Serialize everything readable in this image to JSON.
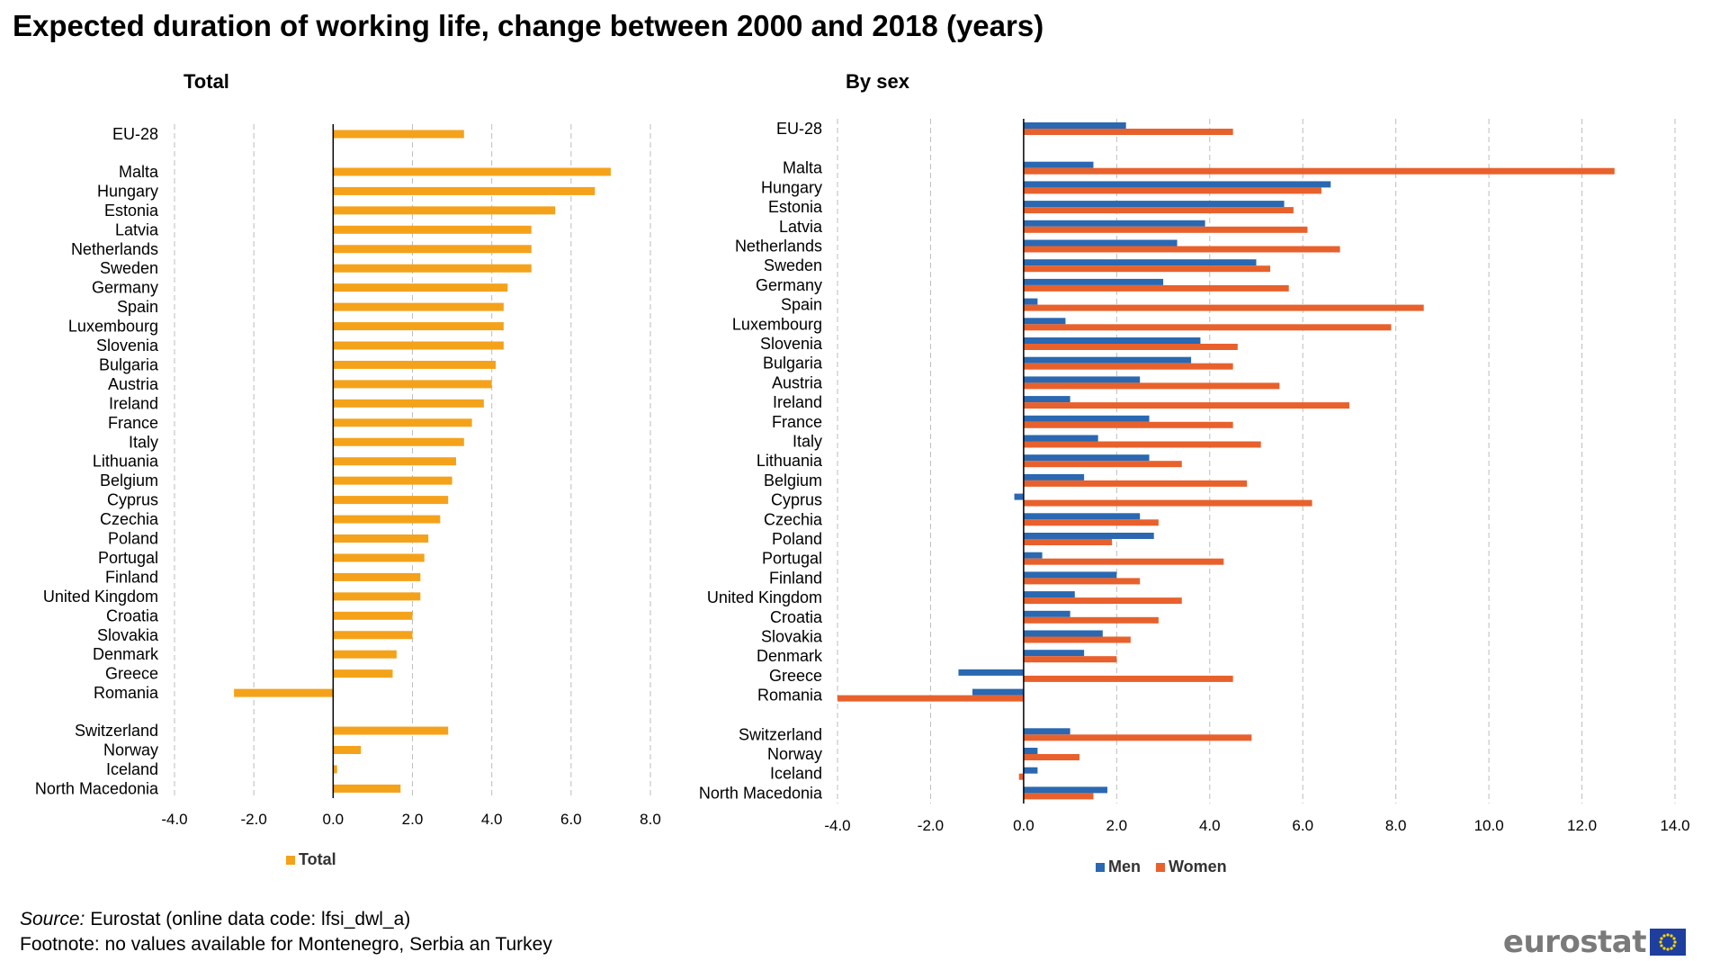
{
  "title": "Expected duration of working life, change between 2000 and 2018 (years)",
  "chart_data": [
    {
      "type": "bar",
      "orientation": "horizontal",
      "title": "Total",
      "categories": [
        "EU-28",
        "Malta",
        "Hungary",
        "Estonia",
        "Latvia",
        "Netherlands",
        "Sweden",
        "Germany",
        "Spain",
        "Luxembourg",
        "Slovenia",
        "Bulgaria",
        "Austria",
        "Ireland",
        "France",
        "Italy",
        "Lithuania",
        "Belgium",
        "Cyprus",
        "Czechia",
        "Poland",
        "Portugal",
        "Finland",
        "United Kingdom",
        "Croatia",
        "Slovakia",
        "Denmark",
        "Greece",
        "Romania",
        "Switzerland",
        "Norway",
        "Iceland",
        "North Macedonia"
      ],
      "series": [
        {
          "name": "Total",
          "color": "#f5a21b",
          "values": [
            3.3,
            7.0,
            6.6,
            5.6,
            5.0,
            5.0,
            5.0,
            4.4,
            4.3,
            4.3,
            4.3,
            4.1,
            4.0,
            3.8,
            3.5,
            3.3,
            3.1,
            3.0,
            2.9,
            2.7,
            2.4,
            2.3,
            2.2,
            2.2,
            2.0,
            2.0,
            1.6,
            1.5,
            -2.5,
            2.9,
            0.7,
            0.1,
            1.7
          ]
        }
      ],
      "xlim": [
        -4,
        8
      ],
      "ticks": [
        "-4.0",
        "-2.0",
        "0.0",
        "2.0",
        "4.0",
        "6.0",
        "8.0"
      ],
      "legend": [
        "Total"
      ]
    },
    {
      "type": "bar",
      "orientation": "horizontal",
      "title": "By sex",
      "categories": [
        "EU-28",
        "Malta",
        "Hungary",
        "Estonia",
        "Latvia",
        "Netherlands",
        "Sweden",
        "Germany",
        "Spain",
        "Luxembourg",
        "Slovenia",
        "Bulgaria",
        "Austria",
        "Ireland",
        "France",
        "Italy",
        "Lithuania",
        "Belgium",
        "Cyprus",
        "Czechia",
        "Poland",
        "Portugal",
        "Finland",
        "United Kingdom",
        "Croatia",
        "Slovakia",
        "Denmark",
        "Greece",
        "Romania",
        "Switzerland",
        "Norway",
        "Iceland",
        "North Macedonia"
      ],
      "series": [
        {
          "name": "Men",
          "color": "#2a68b1",
          "values": [
            2.2,
            1.5,
            6.6,
            5.6,
            3.9,
            3.3,
            5.0,
            3.0,
            0.3,
            0.9,
            3.8,
            3.6,
            2.5,
            1.0,
            2.7,
            1.6,
            2.7,
            1.3,
            -0.2,
            2.5,
            2.8,
            0.4,
            2.0,
            1.1,
            1.0,
            1.7,
            1.3,
            -1.4,
            -1.1,
            1.0,
            0.3,
            0.3,
            1.8
          ]
        },
        {
          "name": "Women",
          "color": "#e8612c",
          "values": [
            4.5,
            12.7,
            6.4,
            5.8,
            6.1,
            6.8,
            5.3,
            5.7,
            8.6,
            7.9,
            4.6,
            4.5,
            5.5,
            7.0,
            4.5,
            5.1,
            3.4,
            4.8,
            6.2,
            2.9,
            1.9,
            4.3,
            2.5,
            3.4,
            2.9,
            2.3,
            2.0,
            4.5,
            -4.0,
            4.9,
            1.2,
            -0.1,
            1.5
          ]
        }
      ],
      "xlim": [
        -4,
        14
      ],
      "ticks": [
        "-4.0",
        "-2.0",
        "0.0",
        "2.0",
        "4.0",
        "6.0",
        "8.0",
        "10.0",
        "12.0",
        "14.0"
      ],
      "legend": [
        "Men",
        "Women"
      ]
    }
  ],
  "footer": {
    "source_label": "Source:",
    "source_text": " Eurostat (online data code:  lfsi_dwl_a)",
    "footnote": "Footnote: no values available for Montenegro, Serbia an Turkey"
  },
  "logo": {
    "text": "eurostat"
  }
}
